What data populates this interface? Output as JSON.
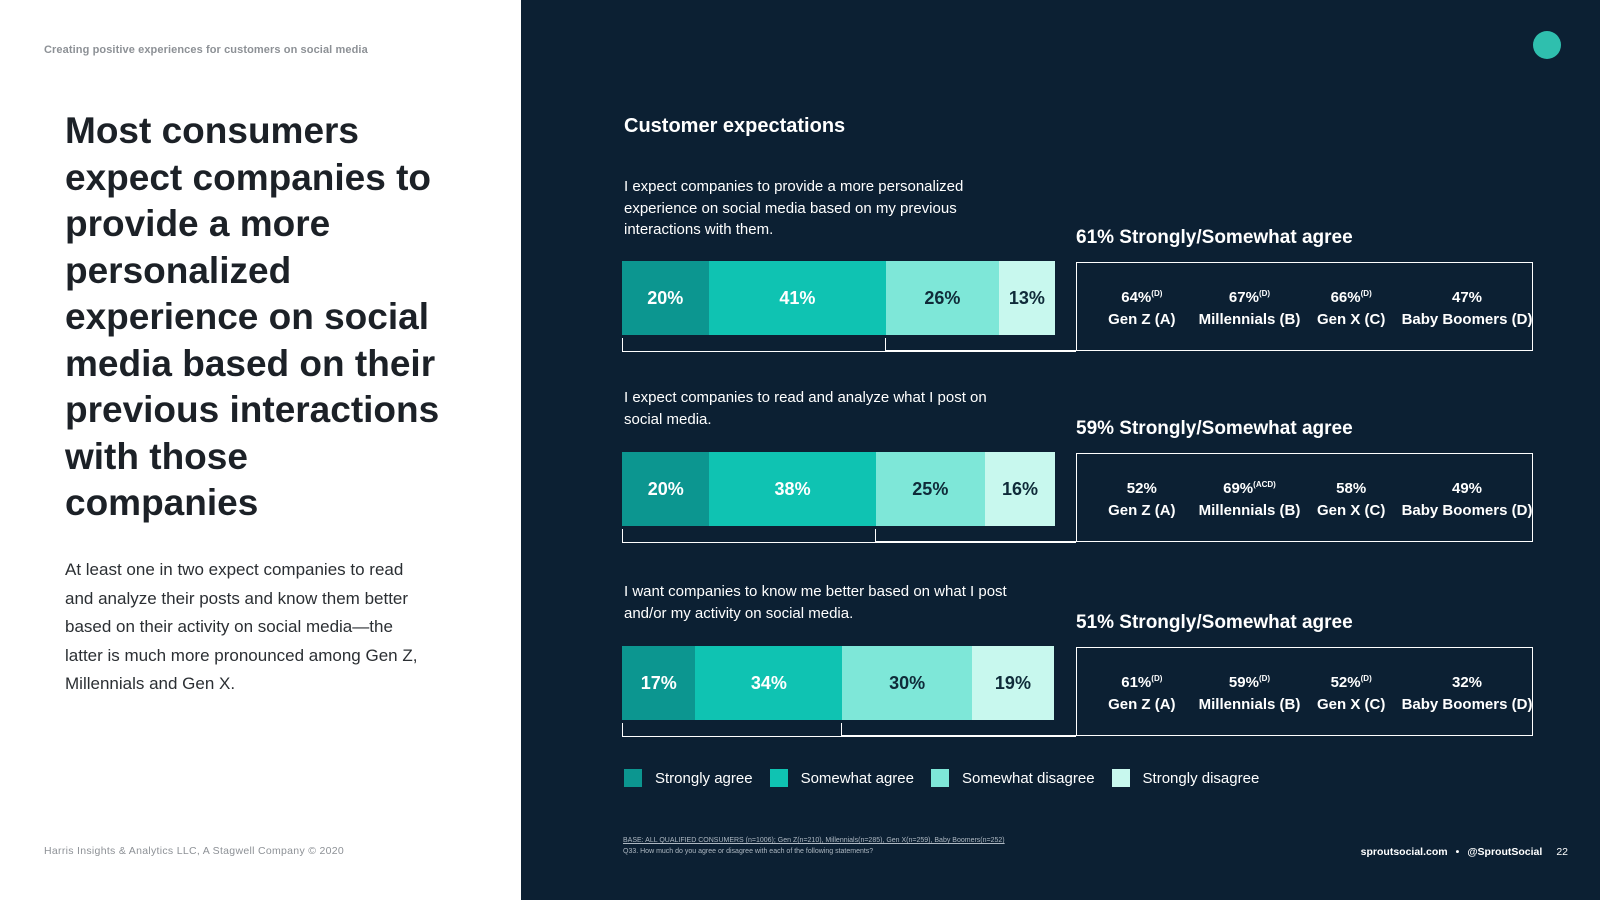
{
  "page": {
    "kicker": "Creating positive experiences for customers on social media",
    "headline": "Most consumers expect companies to provide a more personalized experience on social media based on their previous interactions with those companies",
    "body": "At least one in two expect companies to read and analyze their posts and know them better based on their activity on social media—the latter is much more pronounced among Gen Z, Millennials and Gen X.",
    "footer_left": "Harris Insights & Analytics LLC, A Stagwell Company © 2020",
    "footer_site": "sproutsocial.com",
    "footer_sep": "•",
    "footer_handle": "@SproutSocial",
    "page_number": "22",
    "base_note": "BASE: ALL QUALIFIED CONSUMERS (n=1006); Gen Z(n=210), Millennials(n=285), Gen X(n=259), Baby Boomers(n=252)",
    "question_note": "Q33. How much do you agree or disagree with each of the following statements?"
  },
  "colors": {
    "strongly_agree": "#0c9690",
    "somewhat_agree": "#0fc3b2",
    "somewhat_disagree": "#7ee7d8",
    "strongly_disagree": "#c8f8ee",
    "panel": "#0c2033",
    "accent_dot": "#2fbfae"
  },
  "chart_data": {
    "type": "bar",
    "orientation": "horizontal-stacked-100",
    "title": "Customer expectations",
    "series_names": [
      "Strongly agree",
      "Somewhat agree",
      "Somewhat disagree",
      "Strongly disagree"
    ],
    "rows": [
      {
        "statement": "I expect companies to provide a more personalized experience on social media based on my previous interactions with them.",
        "values": [
          20,
          41,
          26,
          13
        ],
        "labels": [
          "20%",
          "41%",
          "26%",
          "13%"
        ],
        "agree_summary": "61% Strongly/Somewhat agree",
        "generations": [
          {
            "pct": "64%",
            "sup": "(D)",
            "name": "Gen Z (A)"
          },
          {
            "pct": "67%",
            "sup": "(D)",
            "name": "Millennials (B)"
          },
          {
            "pct": "66%",
            "sup": "(D)",
            "name": "Gen X (C)"
          },
          {
            "pct": "47%",
            "sup": "",
            "name": "Baby Boomers (D)"
          }
        ]
      },
      {
        "statement": "I expect companies to read and analyze what I post on social media.",
        "values": [
          20,
          38,
          25,
          16
        ],
        "labels": [
          "20%",
          "38%",
          "25%",
          "16%"
        ],
        "agree_summary": "59% Strongly/Somewhat agree",
        "generations": [
          {
            "pct": "52%",
            "sup": "",
            "name": "Gen Z (A)"
          },
          {
            "pct": "69%",
            "sup": "(ACD)",
            "name": "Millennials (B)"
          },
          {
            "pct": "58%",
            "sup": "",
            "name": "Gen X (C)"
          },
          {
            "pct": "49%",
            "sup": "",
            "name": "Baby Boomers (D)"
          }
        ]
      },
      {
        "statement": "I want companies to know me better based on what I post and/or my activity on social media.",
        "values": [
          17,
          34,
          30,
          19
        ],
        "labels": [
          "17%",
          "34%",
          "30%",
          "19%"
        ],
        "agree_summary": "51% Strongly/Somewhat agree",
        "generations": [
          {
            "pct": "61%",
            "sup": "(D)",
            "name": "Gen Z (A)"
          },
          {
            "pct": "59%",
            "sup": "(D)",
            "name": "Millennials (B)"
          },
          {
            "pct": "52%",
            "sup": "(D)",
            "name": "Gen X (C)"
          },
          {
            "pct": "32%",
            "sup": "",
            "name": "Baby Boomers (D)"
          }
        ]
      }
    ],
    "legend_position": "bottom"
  }
}
